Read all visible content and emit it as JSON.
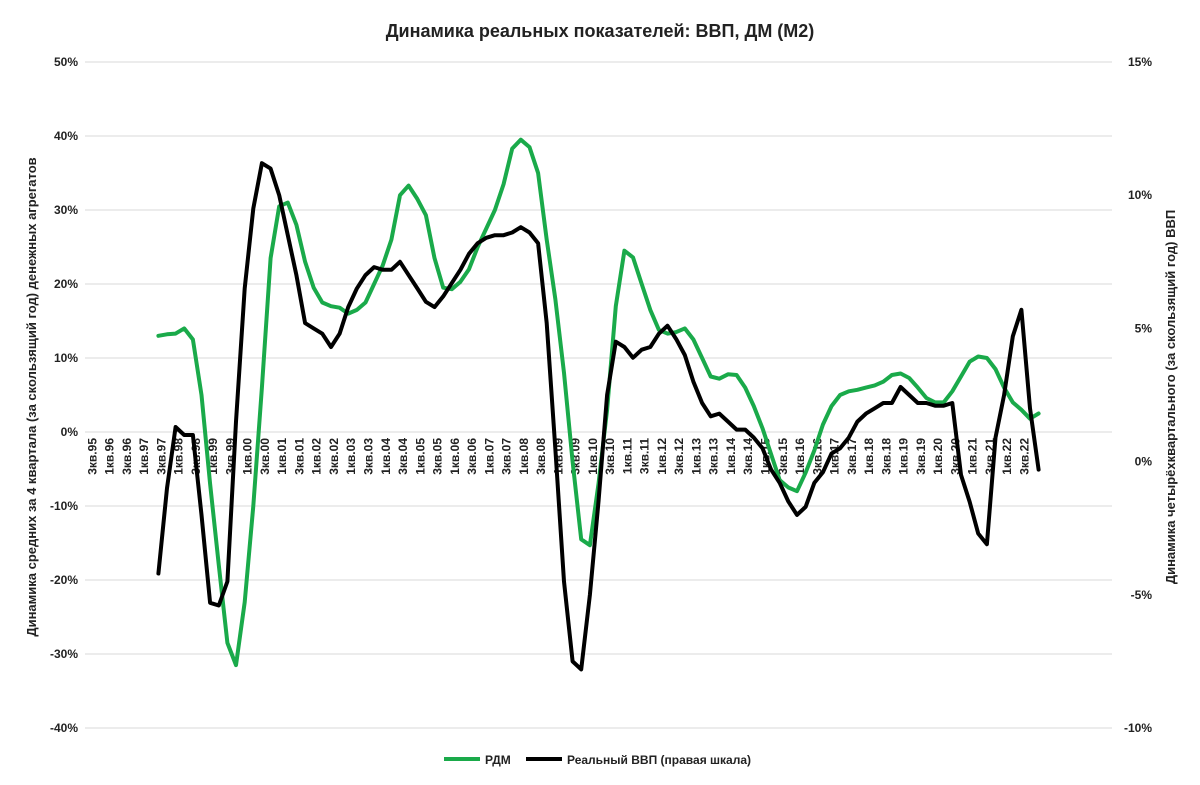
{
  "chart_data": {
    "type": "line",
    "title": "Динамика реальных показателей: ВВП, ДМ (М2)",
    "ylabel_left": "Динамика средних за 4 квартала (за скользящий год) денежных агрегатов",
    "ylabel_right": "Динамика четырёхквартального (за скользящий год) ВВП",
    "left_ticks": [
      "50%",
      "40%",
      "30%",
      "20%",
      "10%",
      "0%",
      "-10%",
      "-20%",
      "-30%",
      "-40%"
    ],
    "right_ticks": [
      "15%",
      "10%",
      "5%",
      "0%",
      "-5%",
      "-10%"
    ],
    "ylim_left": [
      -40,
      50
    ],
    "ylim_right": [
      -10,
      15
    ],
    "grid": true,
    "legend_position": "bottom",
    "x_tick_labels": [
      "3кв.95",
      "1кв.96",
      "3кв.96",
      "1кв.97",
      "3кв.97",
      "1кв.98",
      "3кв.98",
      "1кв.99",
      "3кв.99",
      "1кв.00",
      "3кв.00",
      "1кв.01",
      "3кв.01",
      "1кв.02",
      "3кв.02",
      "1кв.03",
      "3кв.03",
      "1кв.04",
      "3кв.04",
      "1кв.05",
      "3кв.05",
      "1кв.06",
      "3кв.06",
      "1кв.07",
      "3кв.07",
      "1кв.08",
      "3кв.08",
      "1кв.09",
      "3кв.09",
      "1кв.10",
      "3кв.10",
      "1кв.11",
      "3кв.11",
      "1кв.12",
      "3кв.12",
      "1кв.13",
      "3кв.13",
      "1кв.14",
      "3кв.14",
      "1кв.15",
      "3кв.15",
      "1кв.16",
      "3кв.16",
      "1кв.17",
      "3кв.17",
      "1кв.18",
      "3кв.18",
      "1кв.19",
      "3кв.19",
      "1кв.20",
      "3кв.20",
      "1кв.21",
      "3кв.21",
      "1кв.22",
      "3кв.22"
    ],
    "quarter_start_index": 0,
    "series": [
      {
        "name": "РДМ",
        "axis": "left",
        "color": "#1aaa4a",
        "start_index": 8,
        "values": [
          13.0,
          13.2,
          13.3,
          14.0,
          12.5,
          5.0,
          -7.0,
          -18.0,
          -28.5,
          -31.5,
          -23.0,
          -10.0,
          6.0,
          23.5,
          30.5,
          31.0,
          28.0,
          23.0,
          19.5,
          17.5,
          17.0,
          16.8,
          16.0,
          16.5,
          17.5,
          20.0,
          22.5,
          26.0,
          32.0,
          33.3,
          31.5,
          29.3,
          23.5,
          19.5,
          19.3,
          20.3,
          22.0,
          25.0,
          27.5,
          30.0,
          33.5,
          38.3,
          39.5,
          38.5,
          35.0,
          26.0,
          18.0,
          8.0,
          -4.0,
          -14.5,
          -15.3,
          -7.0,
          3.0,
          17.0,
          24.5,
          23.6,
          20.0,
          16.5,
          13.8,
          13.3,
          13.5,
          14.0,
          12.5,
          10.0,
          7.5,
          7.2,
          7.8,
          7.7,
          6.0,
          3.5,
          0.5,
          -3.0,
          -6.5,
          -7.5,
          -8.0,
          -5.5,
          -2.5,
          1.0,
          3.5,
          5.0,
          5.5,
          5.7,
          6.0,
          6.3,
          6.8,
          7.7,
          7.9,
          7.3,
          6.0,
          4.6,
          4.0,
          4.0,
          5.5,
          7.5,
          9.5,
          10.2,
          10.0,
          8.5,
          6.0,
          4.0,
          3.0,
          1.8,
          2.5
        ]
      },
      {
        "name": "Реальный ВВП (правая шкала)",
        "axis": "right",
        "color": "#000000",
        "start_index": 8,
        "values": [
          -4.2,
          -1.0,
          1.3,
          1.0,
          1.0,
          -2.0,
          -5.3,
          -5.4,
          -4.5,
          1.5,
          6.5,
          9.5,
          11.2,
          11.0,
          10.0,
          8.5,
          7.0,
          5.2,
          5.0,
          4.8,
          4.3,
          4.8,
          5.8,
          6.5,
          7.0,
          7.3,
          7.2,
          7.2,
          7.5,
          7.0,
          6.5,
          6.0,
          5.8,
          6.2,
          6.7,
          7.2,
          7.8,
          8.2,
          8.4,
          8.5,
          8.5,
          8.6,
          8.8,
          8.6,
          8.2,
          5.2,
          0.5,
          -4.5,
          -7.5,
          -7.8,
          -5.0,
          -1.5,
          2.5,
          4.5,
          4.3,
          3.9,
          4.2,
          4.3,
          4.8,
          5.1,
          4.6,
          4.0,
          3.0,
          2.2,
          1.7,
          1.8,
          1.5,
          1.2,
          1.2,
          0.9,
          0.5,
          -0.3,
          -0.8,
          -1.5,
          -2.0,
          -1.7,
          -0.8,
          -0.4,
          0.3,
          0.5,
          0.9,
          1.5,
          1.8,
          2.0,
          2.2,
          2.2,
          2.8,
          2.5,
          2.2,
          2.2,
          2.1,
          2.1,
          2.2,
          -0.5,
          -1.5,
          -2.7,
          -3.1,
          0.9,
          2.5,
          4.7,
          5.7,
          2.0,
          -0.3
        ]
      }
    ]
  }
}
